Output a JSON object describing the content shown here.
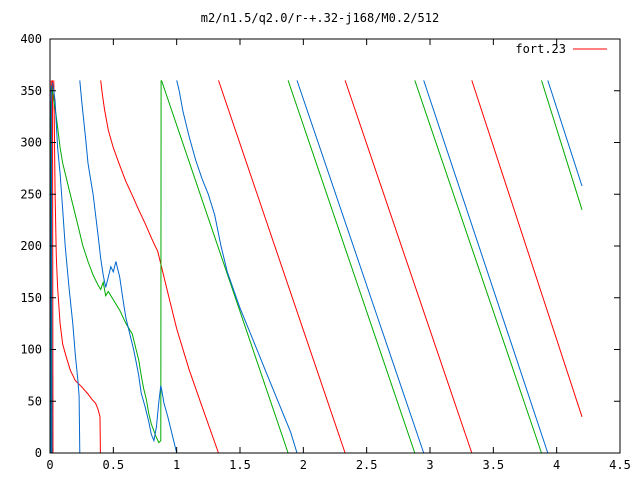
{
  "chart_data": {
    "type": "line",
    "title": "m2/n1.5/q2.0/r-+.32-j168/M0.2/512",
    "xlabel": "",
    "ylabel": "",
    "xlim": [
      0,
      4.5
    ],
    "ylim": [
      0,
      400
    ],
    "xticks": [
      "0",
      "0.5",
      "1",
      "1.5",
      "2",
      "2.5",
      "3",
      "3.5",
      "4",
      "4.5"
    ],
    "yticks": [
      "0",
      "50",
      "100",
      "150",
      "200",
      "250",
      "300",
      "350",
      "400"
    ],
    "grid": false,
    "legend": {
      "position": "top-right",
      "entries": [
        "fort.23"
      ]
    },
    "series": [
      {
        "name": "fort.23",
        "color": "#ff0000",
        "segments": [
          [
            [
              0.0,
              360
            ],
            [
              0.005,
              0
            ]
          ],
          [
            [
              0.01,
              360
            ],
            [
              0.012,
              100
            ],
            [
              0.014,
              40
            ]
          ],
          [
            [
              0.02,
              360
            ],
            [
              0.024,
              0
            ]
          ],
          [
            [
              0.03,
              360
            ],
            [
              0.035,
              310
            ],
            [
              0.04,
              250
            ],
            [
              0.05,
              190
            ],
            [
              0.06,
              160
            ],
            [
              0.08,
              125
            ],
            [
              0.1,
              105
            ],
            [
              0.13,
              92
            ],
            [
              0.16,
              80
            ],
            [
              0.2,
              70
            ],
            [
              0.25,
              64
            ],
            [
              0.3,
              57
            ],
            [
              0.33,
              52
            ],
            [
              0.36,
              48
            ],
            [
              0.38,
              42
            ],
            [
              0.395,
              35
            ],
            [
              0.398,
              0
            ]
          ],
          [
            [
              0.4,
              360
            ],
            [
              0.41,
              350
            ],
            [
              0.43,
              332
            ],
            [
              0.46,
              312
            ],
            [
              0.5,
              295
            ],
            [
              0.55,
              278
            ],
            [
              0.6,
              262
            ],
            [
              0.65,
              249
            ],
            [
              0.7,
              235
            ],
            [
              0.75,
              222
            ],
            [
              0.8,
              208
            ],
            [
              0.83,
              200
            ],
            [
              0.85,
              195
            ],
            [
              0.88,
              180
            ],
            [
              0.92,
              160
            ],
            [
              0.96,
              140
            ],
            [
              1.0,
              120
            ],
            [
              1.1,
              80
            ],
            [
              1.2,
              45
            ],
            [
              1.33,
              0
            ]
          ],
          [
            [
              1.33,
              360
            ],
            [
              2.33,
              0
            ]
          ],
          [
            [
              2.33,
              360
            ],
            [
              3.33,
              0
            ]
          ],
          [
            [
              3.33,
              360
            ],
            [
              4.2,
              35
            ]
          ]
        ]
      },
      {
        "color": "#00aa00",
        "segments": [
          [
            [
              0.0,
              350
            ],
            [
              0.004,
              0
            ]
          ],
          [
            [
              0.006,
              340
            ],
            [
              0.012,
              0
            ]
          ],
          [
            [
              0.012,
              355
            ],
            [
              0.03,
              340
            ],
            [
              0.05,
              325
            ],
            [
              0.08,
              295
            ],
            [
              0.1,
              280
            ],
            [
              0.12,
              270
            ],
            [
              0.15,
              255
            ],
            [
              0.18,
              240
            ],
            [
              0.22,
              220
            ],
            [
              0.26,
              200
            ],
            [
              0.3,
              185
            ],
            [
              0.34,
              172
            ],
            [
              0.38,
              162
            ],
            [
              0.4,
              158
            ],
            [
              0.42,
              165
            ],
            [
              0.44,
              152
            ],
            [
              0.46,
              156
            ],
            [
              0.5,
              148
            ],
            [
              0.55,
              138
            ],
            [
              0.6,
              125
            ],
            [
              0.65,
              115
            ],
            [
              0.68,
              100
            ],
            [
              0.7,
              90
            ],
            [
              0.72,
              75
            ],
            [
              0.74,
              62
            ],
            [
              0.76,
              52
            ],
            [
              0.78,
              38
            ],
            [
              0.8,
              28
            ],
            [
              0.84,
              15
            ],
            [
              0.86,
              10
            ],
            [
              0.875,
              12
            ],
            [
              0.877,
              360
            ]
          ],
          [
            [
              0.88,
              360
            ],
            [
              1.88,
              0
            ]
          ],
          [
            [
              1.88,
              360
            ],
            [
              2.88,
              0
            ]
          ],
          [
            [
              2.88,
              360
            ],
            [
              3.88,
              0
            ]
          ],
          [
            [
              3.88,
              360
            ],
            [
              4.2,
              235
            ]
          ]
        ]
      },
      {
        "color": "#0066cc",
        "segments": [
          [
            [
              0.0,
              358
            ],
            [
              0.006,
              0
            ]
          ],
          [
            [
              0.01,
              355
            ],
            [
              0.016,
              0
            ]
          ],
          [
            [
              0.02,
              358
            ],
            [
              0.03,
              350
            ],
            [
              0.04,
              340
            ],
            [
              0.05,
              318
            ],
            [
              0.06,
              295
            ],
            [
              0.08,
              270
            ],
            [
              0.1,
              235
            ],
            [
              0.12,
              200
            ],
            [
              0.15,
              160
            ],
            [
              0.18,
              125
            ],
            [
              0.2,
              95
            ],
            [
              0.22,
              70
            ],
            [
              0.23,
              55
            ],
            [
              0.235,
              0
            ]
          ],
          [
            [
              0.235,
              360
            ],
            [
              0.25,
              340
            ],
            [
              0.28,
              305
            ],
            [
              0.3,
              280
            ],
            [
              0.32,
              265
            ],
            [
              0.34,
              250
            ],
            [
              0.36,
              230
            ],
            [
              0.38,
              210
            ],
            [
              0.4,
              188
            ],
            [
              0.42,
              172
            ],
            [
              0.44,
              160
            ],
            [
              0.46,
              170
            ],
            [
              0.48,
              180
            ],
            [
              0.5,
              175
            ],
            [
              0.52,
              185
            ],
            [
              0.55,
              170
            ],
            [
              0.58,
              145
            ],
            [
              0.6,
              130
            ],
            [
              0.63,
              115
            ],
            [
              0.66,
              100
            ],
            [
              0.68,
              88
            ],
            [
              0.7,
              75
            ],
            [
              0.72,
              58
            ],
            [
              0.75,
              45
            ],
            [
              0.78,
              30
            ],
            [
              0.8,
              18
            ],
            [
              0.82,
              12
            ],
            [
              0.84,
              25
            ],
            [
              0.86,
              50
            ],
            [
              0.875,
              65
            ],
            [
              0.88,
              62
            ],
            [
              0.9,
              48
            ],
            [
              0.93,
              35
            ],
            [
              0.96,
              20
            ],
            [
              0.99,
              5
            ],
            [
              1.0,
              0
            ]
          ],
          [
            [
              1.0,
              360
            ],
            [
              1.02,
              350
            ],
            [
              1.05,
              330
            ],
            [
              1.1,
              305
            ],
            [
              1.15,
              283
            ],
            [
              1.2,
              265
            ],
            [
              1.25,
              250
            ],
            [
              1.3,
              230
            ],
            [
              1.35,
              200
            ],
            [
              1.4,
              175
            ],
            [
              1.5,
              140
            ],
            [
              1.6,
              110
            ],
            [
              1.7,
              80
            ],
            [
              1.8,
              50
            ],
            [
              1.9,
              20
            ],
            [
              1.95,
              0
            ]
          ],
          [
            [
              1.95,
              360
            ],
            [
              2.95,
              0
            ]
          ],
          [
            [
              2.95,
              360
            ],
            [
              3.93,
              0
            ]
          ],
          [
            [
              3.93,
              360
            ],
            [
              4.2,
              258
            ]
          ]
        ]
      }
    ]
  }
}
